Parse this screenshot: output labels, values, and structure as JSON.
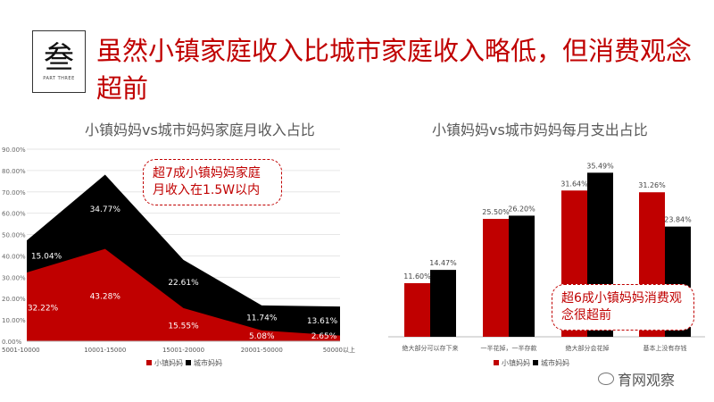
{
  "header": {
    "logo_char": "叁",
    "logo_sub": "PART THREE",
    "headline": "虽然小镇家庭收入比城市家庭收入略低，但消费观念超前"
  },
  "watermark": "育网观察",
  "colors": {
    "town": "#c00000",
    "city": "#000000",
    "accent": "#c00000",
    "grid": "#e6e6e6"
  },
  "chart_data": [
    {
      "type": "area",
      "title": "小镇妈妈vs城市妈妈家庭月收入占比",
      "categories": [
        "5001-10000",
        "10001-15000",
        "15001-20000",
        "20001-50000",
        "50000以上"
      ],
      "ylim": [
        0,
        90
      ],
      "yticks": [
        "0.00%",
        "10.00%",
        "20.00%",
        "30.00%",
        "40.00%",
        "50.00%",
        "60.00%",
        "70.00%",
        "80.00%",
        "90.00%"
      ],
      "stacked": true,
      "grid": true,
      "legend": "bottom",
      "series": [
        {
          "name": "小镇妈妈",
          "values": [
            32.22,
            43.28,
            15.55,
            5.08,
            2.65
          ],
          "labels": [
            "32.22%",
            "43.28%",
            "15.55%",
            "5.08%",
            "2.65%"
          ]
        },
        {
          "name": "城市妈妈",
          "values": [
            15.04,
            34.77,
            22.61,
            11.74,
            13.61
          ],
          "labels": [
            "15.04%",
            "34.77%",
            "22.61%",
            "11.74%",
            "13.61%"
          ]
        }
      ],
      "annotation": "超7成小镇妈妈家庭月收入在1.5W以内"
    },
    {
      "type": "bar",
      "title": "小镇妈妈vs城市妈妈每月支出占比",
      "categories": [
        "绝大部分可以存下来",
        "一半花掉，一半存款",
        "绝大部分会花掉",
        "基本上没有存钱"
      ],
      "ylim": [
        0,
        40
      ],
      "legend": "bottom",
      "series": [
        {
          "name": "小镇妈妈",
          "values": [
            11.6,
            25.5,
            31.64,
            31.26
          ],
          "labels": [
            "11.60%",
            "25.50%",
            "31.64%",
            "31.26%"
          ]
        },
        {
          "name": "城市妈妈",
          "values": [
            14.47,
            26.2,
            35.49,
            23.84
          ],
          "labels": [
            "14.47%",
            "26.20%",
            "35.49%",
            "23.84%"
          ]
        }
      ],
      "annotation": "超6成小镇妈妈消费观念很超前"
    }
  ]
}
